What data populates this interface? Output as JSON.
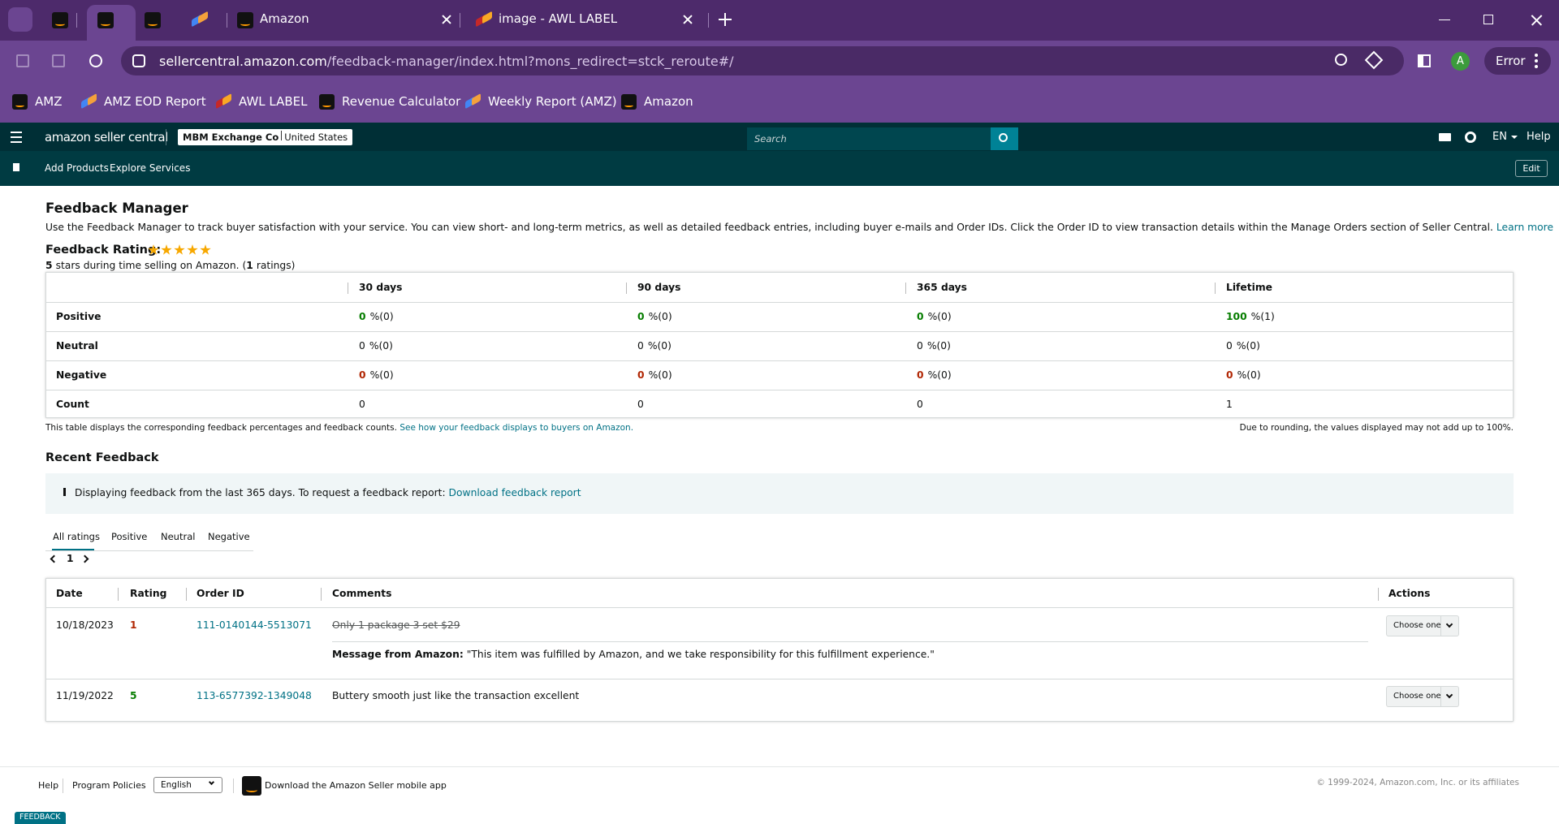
{
  "browser": {
    "tabs": [
      "Amazon",
      "image - AWL LABEL"
    ],
    "host": "sellercentral.amazon.com",
    "path": "/feedback-manager/index.html?mons_redirect=stck_reroute#/",
    "profile": "A",
    "status": "Error",
    "bookmarks": [
      "AMZ",
      "AMZ EOD Report",
      "AWL LABEL",
      "Revenue Calculator",
      "Weekly Report (AMZ)",
      "Amazon"
    ]
  },
  "header": {
    "logo": "amazon seller central",
    "store": "MBM Exchange Co",
    "region": "United States",
    "search_placeholder": "Search",
    "language": "EN",
    "help": "Help"
  },
  "nav": {
    "links": [
      "Add Products",
      "Explore Services"
    ],
    "edit": "Edit"
  },
  "feedback_manager": {
    "title": "Feedback Manager",
    "description": "Use the Feedback Manager to track buyer satisfaction with your service. You can view short- and long-term metrics, as well as detailed feedback entries, including buyer e-mails and Order IDs. Click the Order ID to view transaction details within the Manage Orders section of Seller Central.",
    "learn_more": "Learn more",
    "rating_label": "Feedback Rating:",
    "summary": [
      "5",
      "stars during time selling on Amazon. (",
      "1",
      "ratings)"
    ]
  },
  "table": {
    "columns": [
      "30 days",
      "90 days",
      "365 days",
      "Lifetime"
    ],
    "rows": [
      {
        "label": "Positive",
        "value_color": "#067d00",
        "cells": [
          [
            "0",
            "%(0)"
          ],
          [
            "0",
            "%(0)"
          ],
          [
            "0",
            "%(0)"
          ],
          [
            "100",
            "%(1)"
          ]
        ]
      },
      {
        "label": "Neutral",
        "cells": [
          [
            "0",
            "%(0)"
          ],
          [
            "0",
            "%(0)"
          ],
          [
            "0",
            "%(0)"
          ],
          [
            "0",
            "%(0)"
          ]
        ]
      },
      {
        "label": "Negative",
        "value_color": "#b12704",
        "cells": [
          [
            "0",
            "%(0)"
          ],
          [
            "0",
            "%(0)"
          ],
          [
            "0",
            "%(0)"
          ],
          [
            "0",
            "%(0)"
          ]
        ]
      },
      {
        "label": "Count",
        "cells": [
          [
            "0"
          ],
          [
            "0"
          ],
          [
            "0"
          ],
          [
            "1"
          ]
        ]
      }
    ],
    "note": "This table displays the corresponding feedback percentages and feedback counts.",
    "note_link": "See how your feedback displays to buyers on Amazon.",
    "rounding_note": "Due to rounding, the values displayed may not add up to 100%."
  },
  "recent": {
    "title": "Recent Feedback",
    "info": "Displaying feedback from the last 365 days. To request a feedback report:",
    "info_link": "Download feedback report",
    "tabs": [
      "All ratings",
      "Positive",
      "Neutral",
      "Negative"
    ],
    "page": "1",
    "columns": [
      "Date",
      "Rating",
      "Order ID",
      "Comments",
      "Actions"
    ],
    "rows": [
      {
        "date": "10/18/2023",
        "rating": "1",
        "rating_color": "#b12704",
        "order_id": "111-0140144-5513071",
        "comment": "Only 1 package 3 set $29",
        "message_label": "Message from Amazon:",
        "message": "\"This item was fulfilled by Amazon, and we take responsibility for this fulfillment experience.\"",
        "action": "Choose one"
      },
      {
        "date": "11/19/2022",
        "rating": "5",
        "rating_color": "#067d00",
        "order_id": "113-6577392-1349048",
        "comment": "Buttery smooth just like the transaction excellent",
        "action": "Choose one"
      }
    ]
  },
  "footer": {
    "links": [
      "Help",
      "Program Policies"
    ],
    "language": "English",
    "app": "Download the Amazon Seller mobile app",
    "copyright": "© 1999-2024, Amazon.com, Inc. or its affiliates",
    "feedback_tab": "FEEDBACK"
  }
}
